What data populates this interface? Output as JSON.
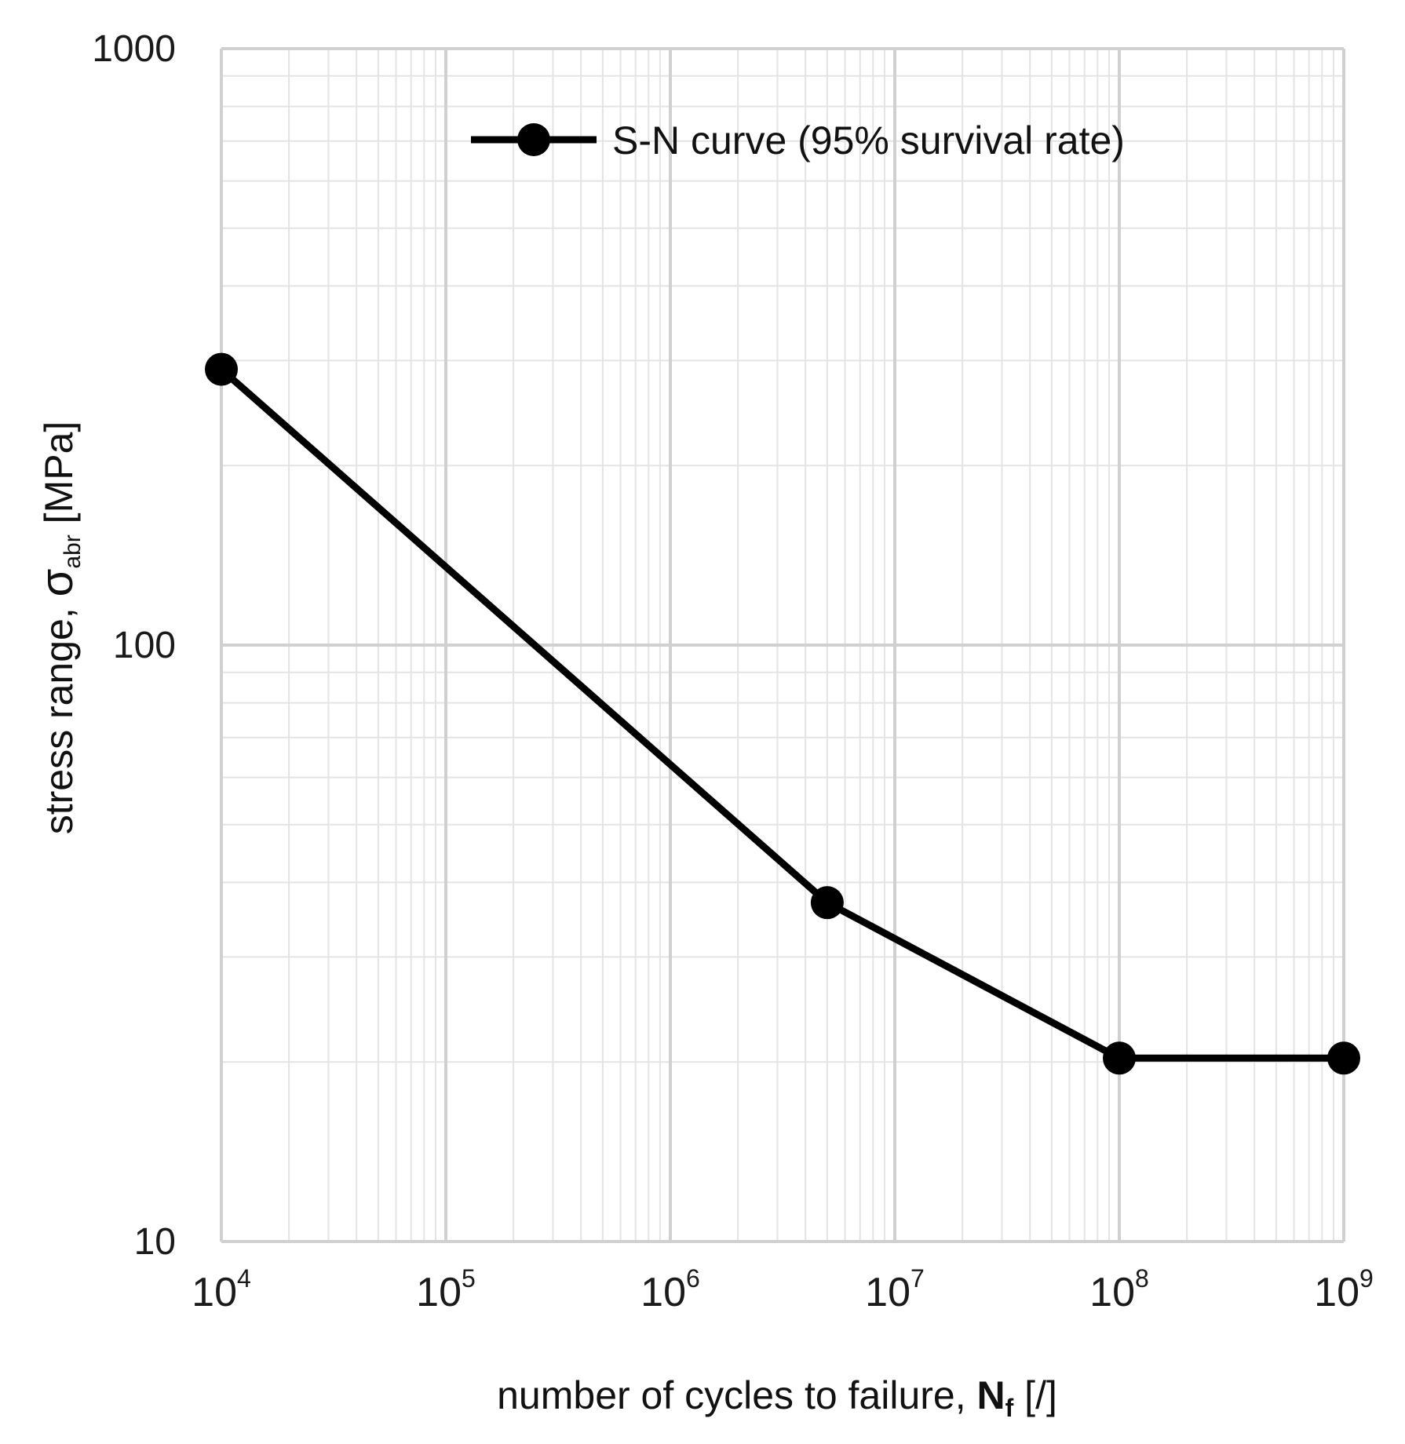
{
  "chart_data": {
    "type": "line",
    "title": "",
    "xscale": "log",
    "yscale": "log",
    "xlim": [
      10000,
      1000000000
    ],
    "ylim": [
      10,
      1000
    ],
    "grid": true,
    "xlabel": {
      "text": "number of cycles to failure, ",
      "symbol": "N",
      "subscript": "f",
      "unit": " [/]"
    },
    "ylabel": {
      "text": "stress range, ",
      "symbol": "σ",
      "subscript": "abr",
      "unit": " [MPa]"
    },
    "x_ticks": [
      {
        "value": 10000,
        "base": "10",
        "exponent": "4"
      },
      {
        "value": 100000,
        "base": "10",
        "exponent": "5"
      },
      {
        "value": 1000000,
        "base": "10",
        "exponent": "6"
      },
      {
        "value": 10000000,
        "base": "10",
        "exponent": "7"
      },
      {
        "value": 100000000,
        "base": "10",
        "exponent": "8"
      },
      {
        "value": 1000000000,
        "base": "10",
        "exponent": "9"
      }
    ],
    "y_ticks": [
      {
        "value": 10,
        "label": "10"
      },
      {
        "value": 100,
        "label": "100"
      },
      {
        "value": 1000,
        "label": "1000"
      }
    ],
    "legend": {
      "position": "top-right"
    },
    "series": [
      {
        "name": "S-N curve (95% survival rate)",
        "color": "#000000",
        "marker": "circle",
        "x": [
          10000,
          5000000,
          100000000,
          1000000000
        ],
        "y": [
          290,
          37,
          20.3,
          20.3
        ]
      }
    ]
  }
}
